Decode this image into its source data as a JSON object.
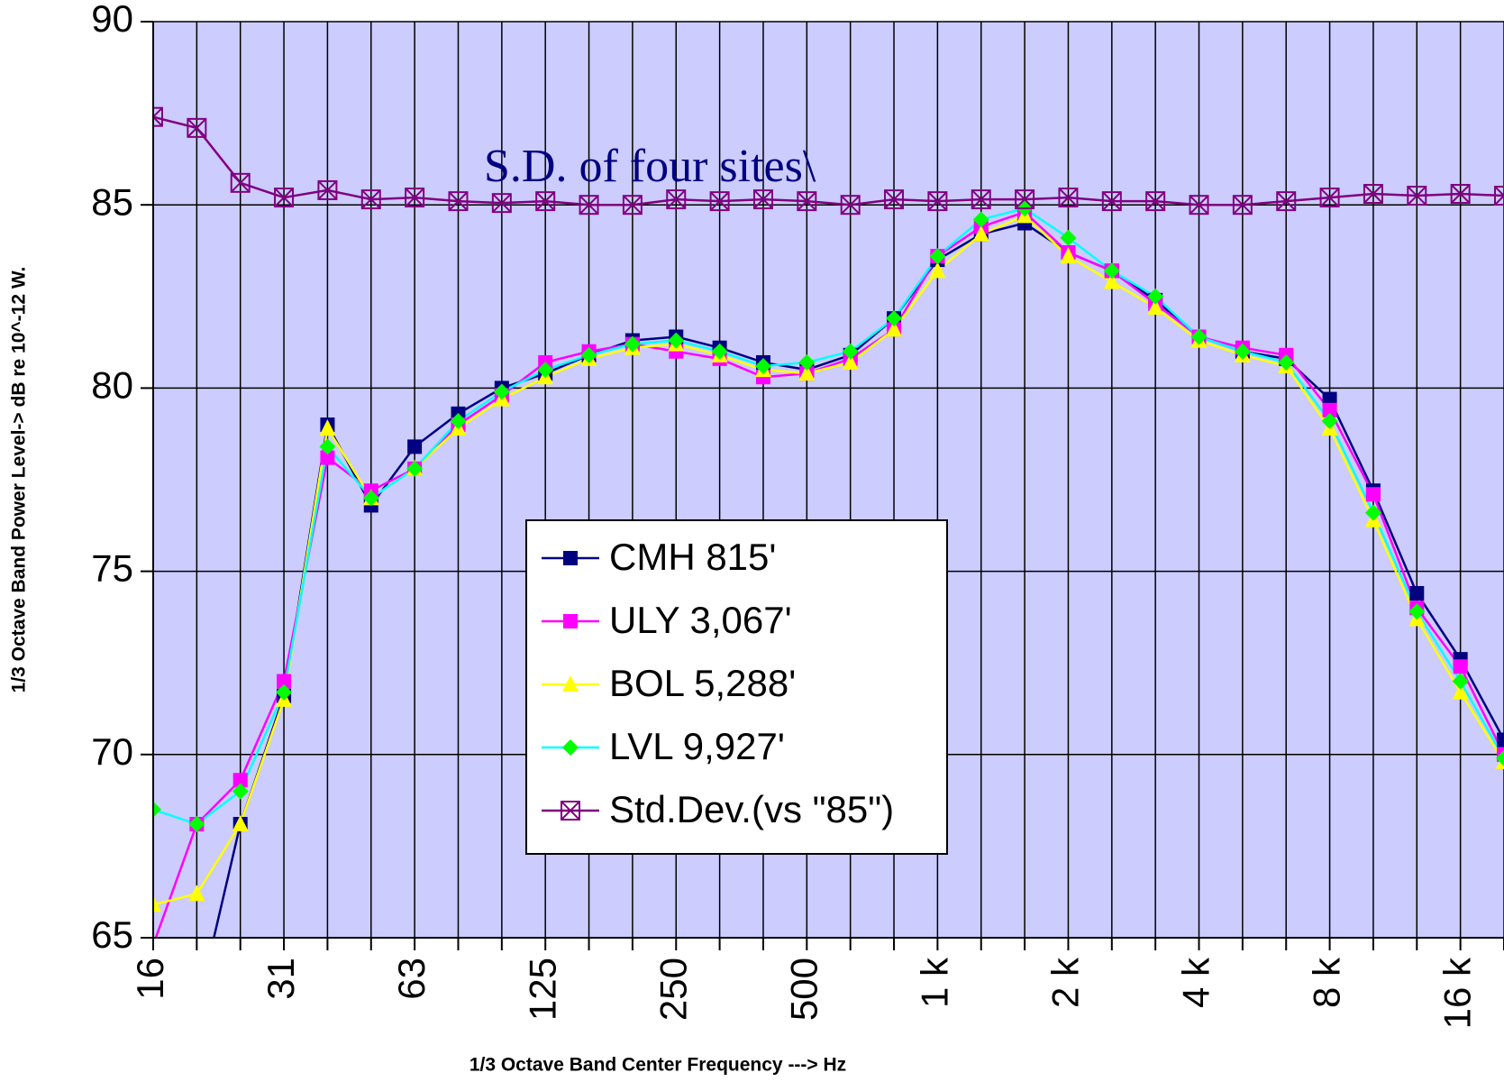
{
  "chart_data": {
    "type": "line",
    "annotation": "S.D. of four sites\\",
    "x_label": "1/3 Octave Band Center Frequency ---> Hz",
    "y_label": "1/3 Octave Band Power Level-> dB re 10^-12 W.",
    "categories": [
      "16",
      null,
      null,
      "31",
      null,
      null,
      "63",
      null,
      null,
      "125",
      null,
      null,
      "250",
      null,
      null,
      "500",
      null,
      null,
      "1 k",
      null,
      null,
      "2 k",
      null,
      null,
      "4 k",
      null,
      null,
      "8 k",
      null,
      null,
      "16 k",
      null
    ],
    "ylim": [
      65,
      90
    ],
    "yticks": [
      65,
      70,
      75,
      80,
      85,
      90
    ],
    "grid": true,
    "background": "#ccccff",
    "legend": "center",
    "series": [
      {
        "name": "CMH 815'",
        "color": "#000080",
        "marker": "square",
        "marker_color": "#000080",
        "values": [
          60,
          63,
          68.1,
          71.6,
          79.0,
          76.8,
          78.4,
          79.3,
          80.0,
          80.4,
          80.9,
          81.3,
          81.4,
          81.1,
          80.7,
          80.5,
          80.9,
          81.9,
          83.5,
          84.2,
          84.5,
          83.7,
          83.2,
          82.4,
          81.4,
          81.0,
          80.8,
          79.7,
          77.2,
          74.4,
          72.6,
          70.4
        ]
      },
      {
        "name": "ULY 3,067'",
        "color": "#ff00ff",
        "marker": "square",
        "marker_color": "#ff00ff",
        "values": [
          64.8,
          68.1,
          69.3,
          72.0,
          78.1,
          77.2,
          77.8,
          79.0,
          79.8,
          80.7,
          81.0,
          81.2,
          81.0,
          80.8,
          80.3,
          80.4,
          80.8,
          81.6,
          83.6,
          84.4,
          84.8,
          83.7,
          83.2,
          82.3,
          81.4,
          81.1,
          80.9,
          79.4,
          77.1,
          74.0,
          72.4,
          70.0
        ]
      },
      {
        "name": "BOL 5,288'",
        "color": "#ffff00",
        "marker": "triangle",
        "marker_color": "#ffff00",
        "values": [
          65.9,
          66.2,
          68.1,
          71.5,
          78.9,
          77.0,
          77.8,
          78.9,
          79.7,
          80.3,
          80.8,
          81.1,
          81.2,
          80.9,
          80.5,
          80.4,
          80.7,
          81.6,
          83.2,
          84.2,
          84.7,
          83.6,
          82.9,
          82.2,
          81.3,
          80.9,
          80.6,
          78.9,
          76.4,
          73.7,
          71.7,
          69.8
        ]
      },
      {
        "name": "LVL 9,927'",
        "color": "#00ffff",
        "marker": "diamond",
        "marker_color": "#00ff00",
        "values": [
          68.5,
          68.1,
          69.0,
          71.7,
          78.4,
          77.0,
          77.8,
          79.1,
          79.9,
          80.5,
          80.9,
          81.2,
          81.3,
          81.0,
          80.6,
          80.7,
          81.0,
          81.9,
          83.6,
          84.6,
          84.9,
          84.1,
          83.2,
          82.5,
          81.4,
          81.0,
          80.7,
          79.1,
          76.6,
          73.9,
          72.0,
          69.9
        ]
      },
      {
        "name": "Std.Dev.(vs \"85\")",
        "color": "#800080",
        "marker": "boxx",
        "marker_color": "#800080",
        "values": [
          87.4,
          87.1,
          85.6,
          85.2,
          85.4,
          85.15,
          85.2,
          85.1,
          85.05,
          85.1,
          85.0,
          85.0,
          85.15,
          85.1,
          85.15,
          85.1,
          85.0,
          85.15,
          85.1,
          85.15,
          85.15,
          85.2,
          85.1,
          85.1,
          85.0,
          85.0,
          85.1,
          85.2,
          85.3,
          85.25,
          85.3,
          85.25
        ]
      }
    ]
  }
}
